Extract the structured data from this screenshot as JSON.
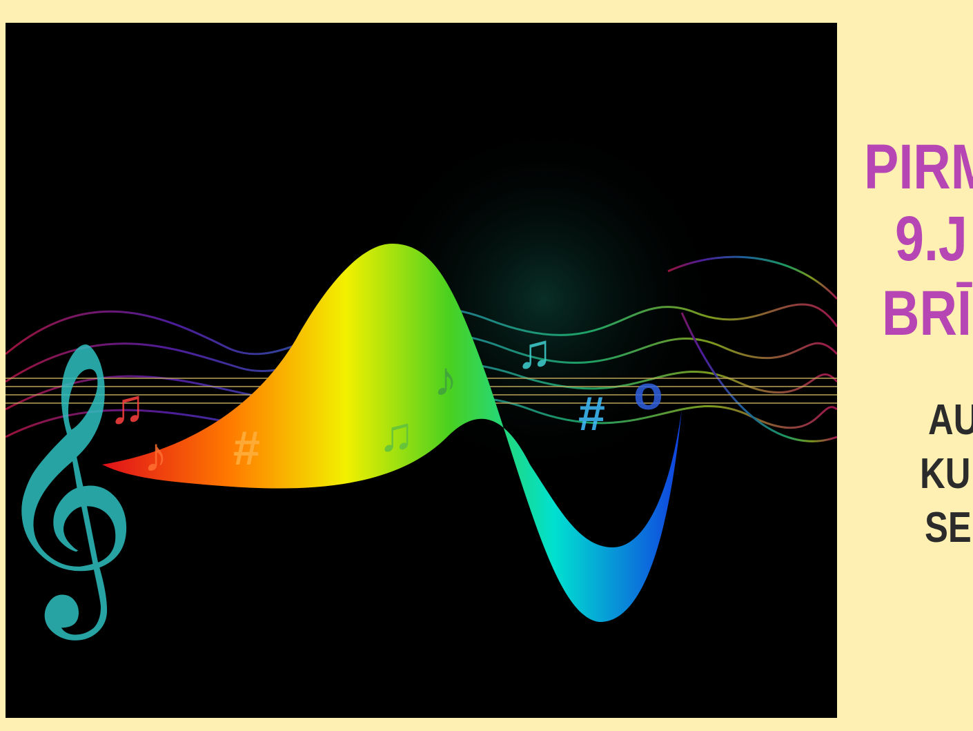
{
  "headline": {
    "lines": [
      "PIRM",
      "9.J",
      "BRĪ"
    ]
  },
  "subtext": {
    "lines": [
      "AU",
      "KU",
      "SE"
    ]
  }
}
